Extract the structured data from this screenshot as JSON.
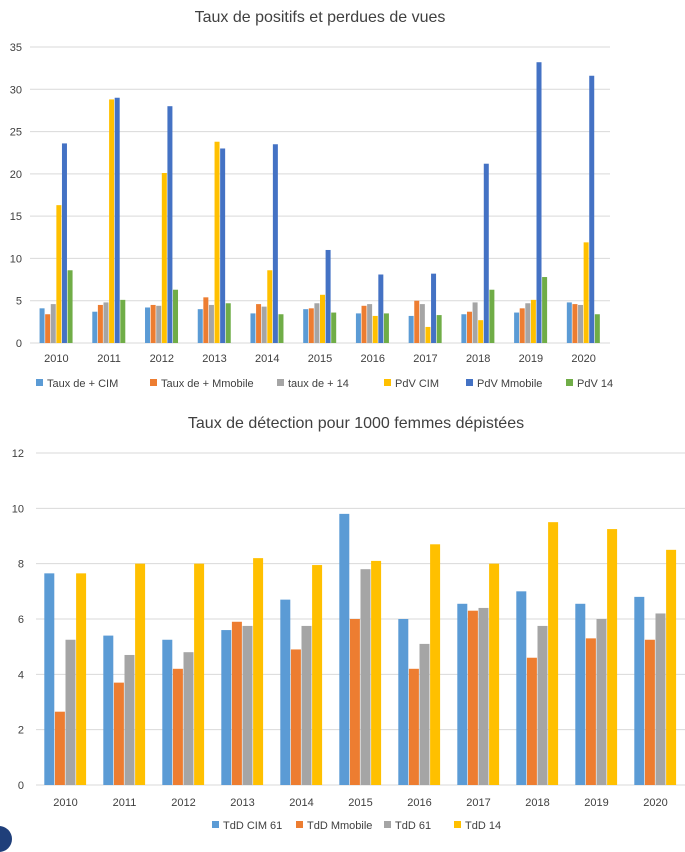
{
  "chart_data": [
    {
      "type": "bar",
      "title": "Taux de positifs et perdues de vues",
      "xlabel": "",
      "ylabel": "",
      "ylim": [
        0,
        35
      ],
      "yticks": [
        "0",
        "5",
        "10",
        "15",
        "20",
        "25",
        "30",
        "35"
      ],
      "grid": "horizontal",
      "legend": "bottom",
      "categories": [
        "2010",
        "2011",
        "2012",
        "2013",
        "2014",
        "2015",
        "2016",
        "2017",
        "2018",
        "2019",
        "2020"
      ],
      "series": [
        {
          "name": "Taux de + CIM",
          "color": "#5b9bd5",
          "values": [
            4.1,
            3.7,
            4.2,
            4.0,
            3.5,
            4.0,
            3.5,
            3.2,
            3.4,
            3.6,
            4.8
          ]
        },
        {
          "name": "Taux de + Mmobile",
          "color": "#ed7d31",
          "values": [
            3.4,
            4.5,
            4.5,
            5.4,
            4.6,
            4.1,
            4.4,
            5.0,
            3.7,
            4.1,
            4.6
          ]
        },
        {
          "name": "taux de + 14",
          "color": "#a5a5a5",
          "values": [
            4.6,
            4.8,
            4.4,
            4.5,
            4.3,
            4.7,
            4.6,
            4.6,
            4.8,
            4.7,
            4.5
          ]
        },
        {
          "name": "PdV CIM",
          "color": "#ffc000",
          "values": [
            16.3,
            28.8,
            20.1,
            23.8,
            8.6,
            5.7,
            3.2,
            1.9,
            2.7,
            5.1,
            11.9
          ]
        },
        {
          "name": "PdV Mmobile",
          "color": "#4472c4",
          "values": [
            23.6,
            29.0,
            28.0,
            23.0,
            23.5,
            11.0,
            8.1,
            8.2,
            21.2,
            33.2,
            31.6
          ]
        },
        {
          "name": "PdV 14",
          "color": "#70ad47",
          "values": [
            8.6,
            5.1,
            6.3,
            4.7,
            3.4,
            3.6,
            3.5,
            3.3,
            6.3,
            7.8,
            3.4
          ]
        }
      ]
    },
    {
      "type": "bar",
      "title": "Taux de détection pour 1000 femmes dépistées",
      "xlabel": "",
      "ylabel": "",
      "ylim": [
        0,
        12
      ],
      "yticks": [
        "0",
        "2",
        "4",
        "6",
        "8",
        "10",
        "12"
      ],
      "grid": "horizontal",
      "legend": "bottom",
      "categories": [
        "2010",
        "2011",
        "2012",
        "2013",
        "2014",
        "2015",
        "2016",
        "2017",
        "2018",
        "2019",
        "2020"
      ],
      "series": [
        {
          "name": "TdD CIM 61",
          "color": "#5b9bd5",
          "values": [
            7.65,
            5.4,
            5.25,
            5.6,
            6.7,
            9.8,
            6.0,
            6.55,
            7.0,
            6.55,
            6.8
          ]
        },
        {
          "name": "TdD Mmobile",
          "color": "#ed7d31",
          "values": [
            2.65,
            3.7,
            4.2,
            5.9,
            4.9,
            6.0,
            4.2,
            6.3,
            4.6,
            5.3,
            5.25
          ]
        },
        {
          "name": "TdD 61",
          "color": "#a5a5a5",
          "values": [
            5.25,
            4.7,
            4.8,
            5.75,
            5.75,
            7.8,
            5.1,
            6.4,
            5.75,
            6.0,
            6.2
          ]
        },
        {
          "name": "TdD 14",
          "color": "#ffc000",
          "values": [
            7.65,
            8.0,
            8.0,
            8.2,
            7.95,
            8.1,
            8.7,
            8.0,
            9.5,
            9.25,
            8.5
          ]
        }
      ]
    }
  ]
}
